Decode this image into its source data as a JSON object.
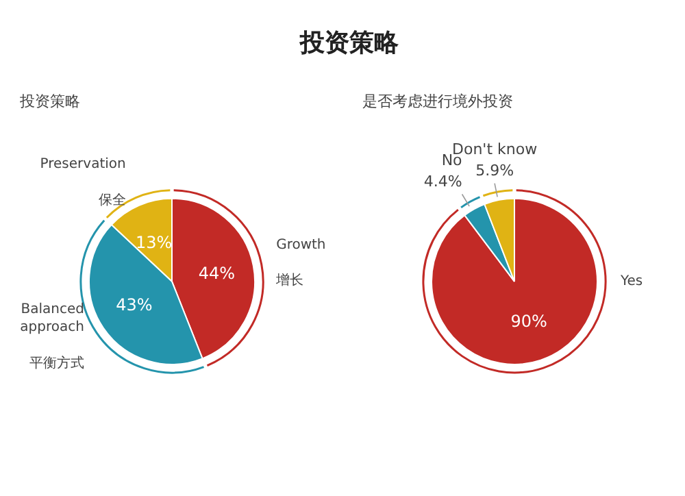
{
  "chart_data": [
    {
      "type": "pie",
      "title": "投资策略",
      "subtitle": "投资策略",
      "categories": [
        "Growth\n\n增长",
        "Balanced\napproach\n\n平衡方式",
        "Preservation\n\n保全"
      ],
      "values": [
        44,
        43,
        13
      ],
      "colors": [
        "#c22a26",
        "#2494ac",
        "#e0b314"
      ],
      "value_labels": [
        "44%",
        "43%",
        "13%"
      ]
    },
    {
      "type": "pie",
      "title": "是否考虑进行境外投资",
      "categories": [
        "Yes",
        "No",
        "Don't know"
      ],
      "values": [
        90,
        4.4,
        5.9
      ],
      "colors": [
        "#c22a26",
        "#2494ac",
        "#e0b314"
      ],
      "value_labels": [
        "90%",
        "4.4%",
        "5.9%"
      ]
    }
  ]
}
